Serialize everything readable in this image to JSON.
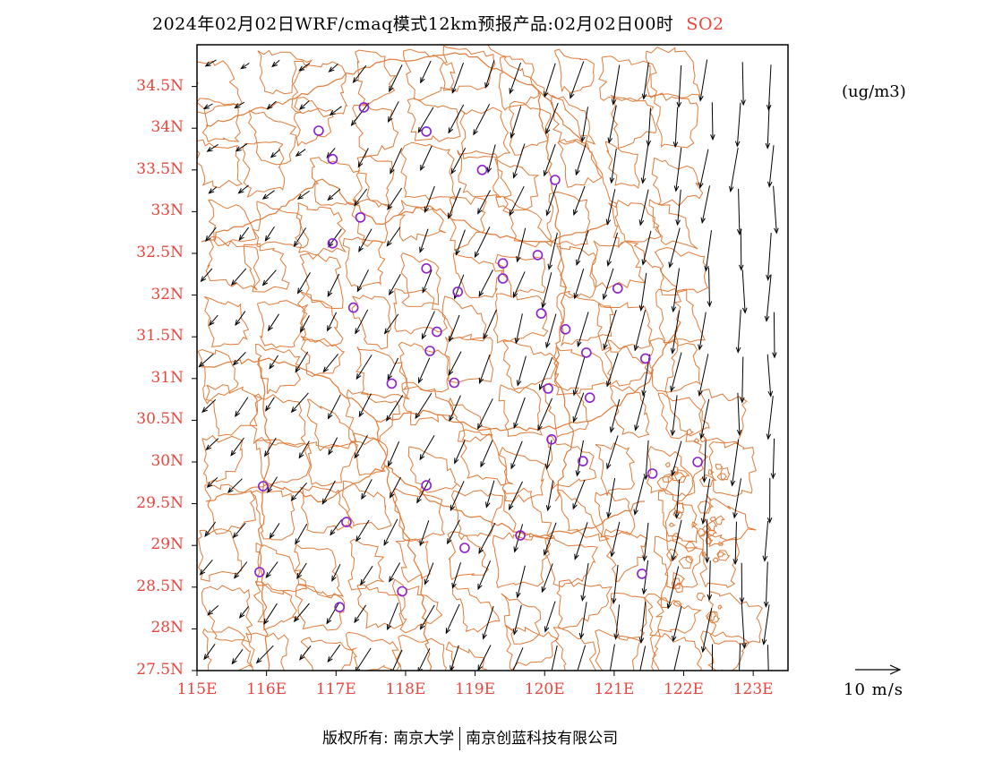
{
  "title": {
    "text": "2024年02月02日WRF/cmaq模式12km预报产品:02月02日00时",
    "species": "SO2"
  },
  "unit": "(ug/m3)",
  "reference_vector": {
    "label": "10  m/s",
    "speed_ms": 10
  },
  "copyright": {
    "prefix": "版权所有:",
    "org1": "南京大学",
    "org2": "南京创蓝科技有限公司"
  },
  "colors": {
    "boundary": "#e07b39",
    "axis_label": "#e8453c",
    "station": "#8b1fd1",
    "vector": "#000000"
  },
  "map": {
    "lon_range": [
      115,
      123.5
    ],
    "lat_range": [
      27.5,
      35
    ],
    "y_ticks": [
      "27.5N",
      "28N",
      "28.5N",
      "29N",
      "29.5N",
      "30N",
      "30.5N",
      "31N",
      "31.5N",
      "32N",
      "32.5N",
      "33N",
      "33.5N",
      "34N",
      "34.5N"
    ],
    "x_ticks": [
      "115E",
      "116E",
      "117E",
      "118E",
      "119E",
      "120E",
      "121E",
      "122E",
      "123E"
    ],
    "stations": [
      {
        "lon": 117.4,
        "lat": 34.25
      },
      {
        "lon": 116.75,
        "lat": 33.97
      },
      {
        "lon": 118.3,
        "lat": 33.96
      },
      {
        "lon": 116.95,
        "lat": 33.63
      },
      {
        "lon": 119.1,
        "lat": 33.5
      },
      {
        "lon": 120.15,
        "lat": 33.38
      },
      {
        "lon": 117.35,
        "lat": 32.93
      },
      {
        "lon": 116.95,
        "lat": 32.62
      },
      {
        "lon": 119.9,
        "lat": 32.48
      },
      {
        "lon": 119.4,
        "lat": 32.38
      },
      {
        "lon": 118.3,
        "lat": 32.32
      },
      {
        "lon": 119.4,
        "lat": 32.2
      },
      {
        "lon": 118.75,
        "lat": 32.04
      },
      {
        "lon": 121.05,
        "lat": 32.08
      },
      {
        "lon": 117.25,
        "lat": 31.85
      },
      {
        "lon": 119.95,
        "lat": 31.78
      },
      {
        "lon": 120.3,
        "lat": 31.59
      },
      {
        "lon": 118.45,
        "lat": 31.56
      },
      {
        "lon": 118.35,
        "lat": 31.33
      },
      {
        "lon": 120.6,
        "lat": 31.31
      },
      {
        "lon": 121.45,
        "lat": 31.24
      },
      {
        "lon": 117.8,
        "lat": 30.94
      },
      {
        "lon": 118.7,
        "lat": 30.95
      },
      {
        "lon": 120.05,
        "lat": 30.88
      },
      {
        "lon": 120.65,
        "lat": 30.77
      },
      {
        "lon": 120.1,
        "lat": 30.27
      },
      {
        "lon": 120.55,
        "lat": 30.01
      },
      {
        "lon": 121.55,
        "lat": 29.86
      },
      {
        "lon": 122.2,
        "lat": 30.0
      },
      {
        "lon": 115.95,
        "lat": 29.71
      },
      {
        "lon": 118.3,
        "lat": 29.72
      },
      {
        "lon": 117.15,
        "lat": 29.28
      },
      {
        "lon": 119.65,
        "lat": 29.12
      },
      {
        "lon": 118.85,
        "lat": 28.97
      },
      {
        "lon": 115.9,
        "lat": 28.68
      },
      {
        "lon": 121.4,
        "lat": 28.66
      },
      {
        "lon": 117.95,
        "lat": 28.45
      },
      {
        "lon": 117.05,
        "lat": 28.26
      }
    ]
  }
}
